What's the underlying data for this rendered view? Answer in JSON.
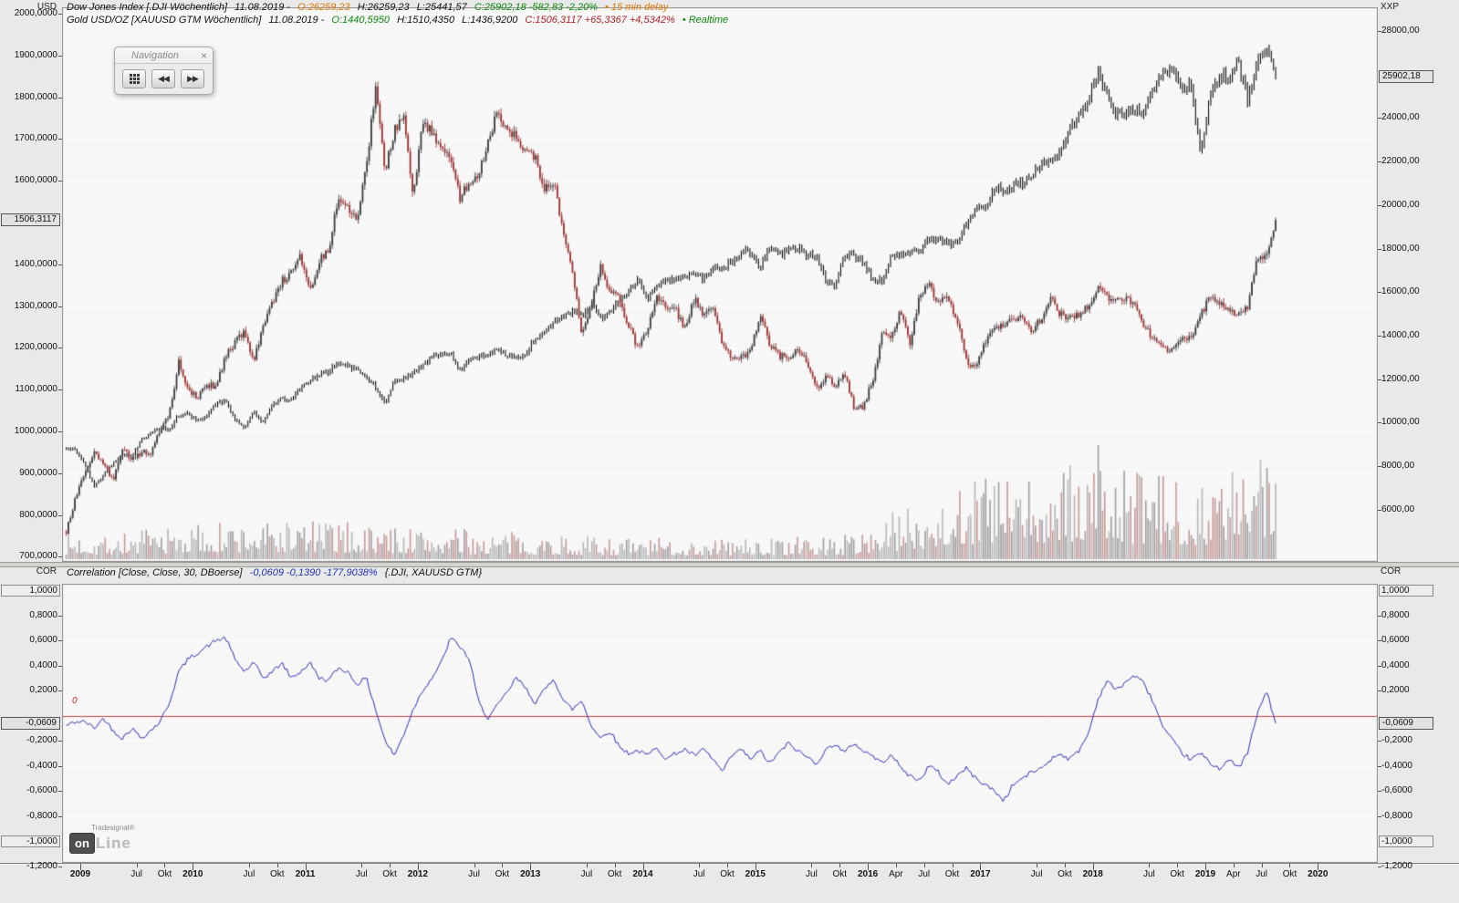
{
  "axes": {
    "left_title": "USD",
    "right_title": "XXP",
    "corr_title": "COR",
    "price_left": {
      "ticks": [
        {
          "v": 2000,
          "label": "2000,0000"
        },
        {
          "v": 1900,
          "label": "1900,0000"
        },
        {
          "v": 1800,
          "label": "1800,0000"
        },
        {
          "v": 1700,
          "label": "1700,0000"
        },
        {
          "v": 1600,
          "label": "1600,0000"
        },
        {
          "v": 1400,
          "label": "1400,0000"
        },
        {
          "v": 1300,
          "label": "1300,0000"
        },
        {
          "v": 1200,
          "label": "1200,0000"
        },
        {
          "v": 1100,
          "label": "1100,0000"
        },
        {
          "v": 1000,
          "label": "1000,0000"
        },
        {
          "v": 900,
          "label": "900,0000"
        },
        {
          "v": 800,
          "label": "800,0000"
        },
        {
          "v": 700,
          "label": "700,0000"
        }
      ],
      "marker": {
        "v": 1506.3117,
        "label": "1506,3117"
      }
    },
    "price_right": {
      "ticks": [
        {
          "v": 28000,
          "label": "28000,00"
        },
        {
          "v": 24000,
          "label": "24000,00"
        },
        {
          "v": 22000,
          "label": "22000,00"
        },
        {
          "v": 20000,
          "label": "20000,00"
        },
        {
          "v": 18000,
          "label": "18000,00"
        },
        {
          "v": 16000,
          "label": "16000,00"
        },
        {
          "v": 14000,
          "label": "14000,00"
        },
        {
          "v": 12000,
          "label": "12000,00"
        },
        {
          "v": 10000,
          "label": "10000,00"
        },
        {
          "v": 8000,
          "label": "8000,00"
        },
        {
          "v": 6000,
          "label": "6000,00"
        }
      ],
      "marker": {
        "v": 25902.18,
        "label": "25902,18"
      }
    },
    "corr": {
      "ticks": [
        {
          "v": 0.8,
          "label": "0,8000"
        },
        {
          "v": 0.6,
          "label": "0,6000"
        },
        {
          "v": 0.4,
          "label": "0,4000"
        },
        {
          "v": 0.2,
          "label": "0,2000"
        },
        {
          "v": -0.2,
          "label": "-0,2000"
        },
        {
          "v": -0.4,
          "label": "-0,4000"
        },
        {
          "v": -0.6,
          "label": "-0,6000"
        },
        {
          "v": -0.8,
          "label": "-0,8000"
        }
      ],
      "bounds": [
        {
          "v": 1,
          "label": "1,0000"
        },
        {
          "v": -1,
          "label": "-1,0000"
        }
      ],
      "edges": [
        {
          "v": -1.2,
          "label": "-1,2000"
        }
      ],
      "marker": {
        "v": -0.0609,
        "label": "-0,0609"
      },
      "zero_label": "0"
    },
    "time": [
      {
        "t": 2009,
        "label": "2009",
        "year": true
      },
      {
        "t": 2009.5,
        "label": "Jul"
      },
      {
        "t": 2009.75,
        "label": "Okt"
      },
      {
        "t": 2010,
        "label": "2010",
        "year": true
      },
      {
        "t": 2010.5,
        "label": "Jul"
      },
      {
        "t": 2010.75,
        "label": "Okt"
      },
      {
        "t": 2011,
        "label": "2011",
        "year": true
      },
      {
        "t": 2011.5,
        "label": "Jul"
      },
      {
        "t": 2011.75,
        "label": "Okt"
      },
      {
        "t": 2012,
        "label": "2012",
        "year": true
      },
      {
        "t": 2012.5,
        "label": "Jul"
      },
      {
        "t": 2012.75,
        "label": "Okt"
      },
      {
        "t": 2013,
        "label": "2013",
        "year": true
      },
      {
        "t": 2013.5,
        "label": "Jul"
      },
      {
        "t": 2013.75,
        "label": "Okt"
      },
      {
        "t": 2014,
        "label": "2014",
        "year": true
      },
      {
        "t": 2014.5,
        "label": "Jul"
      },
      {
        "t": 2014.75,
        "label": "Okt"
      },
      {
        "t": 2015,
        "label": "2015",
        "year": true
      },
      {
        "t": 2015.5,
        "label": "Jul"
      },
      {
        "t": 2015.75,
        "label": "Okt"
      },
      {
        "t": 2016,
        "label": "2016",
        "year": true
      },
      {
        "t": 2016.25,
        "label": "Apr"
      },
      {
        "t": 2016.5,
        "label": "Jul"
      },
      {
        "t": 2016.75,
        "label": "Okt"
      },
      {
        "t": 2017,
        "label": "2017",
        "year": true
      },
      {
        "t": 2017.5,
        "label": "Jul"
      },
      {
        "t": 2017.75,
        "label": "Okt"
      },
      {
        "t": 2018,
        "label": "2018",
        "year": true
      },
      {
        "t": 2018.5,
        "label": "Jul"
      },
      {
        "t": 2018.75,
        "label": "Okt"
      },
      {
        "t": 2019,
        "label": "2019",
        "year": true
      },
      {
        "t": 2019.25,
        "label": "Apr"
      },
      {
        "t": 2019.5,
        "label": "Jul"
      },
      {
        "t": 2019.75,
        "label": "Okt"
      },
      {
        "t": 2020,
        "label": "2020",
        "year": true
      }
    ]
  },
  "headers": {
    "dji": {
      "name": "Dow Jones Index [.DJI Wöchentlich]",
      "date": "11.08.2019 -",
      "open": "O:26259,23",
      "high": "H:26259,23",
      "low": "L:25441,57",
      "close": "C:25902,18 -582,83 -2,20%",
      "bullet": "•",
      "status": "15 min delay"
    },
    "gold": {
      "name": "Gold USD/OZ [XAUUSD GTM Wöchentlich]",
      "date": "11.08.2019 -",
      "open": "O:1440,5950",
      "high": "H:1510,4350",
      "low": "L:1436,9200",
      "close": "C:1506,3117 +65,3367 +4,5342%",
      "bullet": "•",
      "status": "Realtime"
    },
    "corr": {
      "name": "Correlation [Close, Close, 30, DBoerse]",
      "values": "-0,0609 -0,1390 -177,9038%",
      "instruments": "{.DJI, XAUUSD GTM}"
    }
  },
  "navigation": {
    "title": "Navigation",
    "close": "×",
    "back": "◀◀",
    "forward": "▶▶"
  },
  "logo": {
    "brand": "Tradesignal",
    "reg": "®",
    "on": "on",
    "line": "Line"
  },
  "chart_data": [
    {
      "type": "candlestick",
      "title": "Dow Jones Index [.DJI] vs Gold USD/OZ [XAUUSD GTM], Wöchentlich",
      "x_unit": "decimal_year",
      "x_range": [
        2008.84,
        2020.56
      ],
      "left_ylim": [
        700,
        2010
      ],
      "right_ylim": [
        5500,
        28600
      ],
      "series": [
        {
          "name": "Gold USD/OZ [XAUUSD GTM]",
          "style": "candlestick",
          "axis": "left",
          "up_color": "#3f3f3f",
          "down_color": "#9c3636",
          "monthly_close": {
            "start": 2008.875,
            "step": 0.0833333,
            "values": [
              760,
              840,
              900,
              950,
              920,
              880,
              960,
              930,
              950,
              950,
              1000,
              1040,
              1170,
              1100,
              1080,
              1110,
              1110,
              1180,
              1210,
              1240,
              1170,
              1250,
              1310,
              1360,
              1380,
              1420,
              1330,
              1410,
              1430,
              1560,
              1540,
              1500,
              1630,
              1830,
              1620,
              1720,
              1750,
              1560,
              1740,
              1720,
              1670,
              1660,
              1560,
              1600,
              1620,
              1690,
              1770,
              1720,
              1710,
              1670,
              1660,
              1580,
              1600,
              1470,
              1390,
              1230,
              1310,
              1400,
              1330,
              1320,
              1250,
              1200,
              1240,
              1330,
              1290,
              1290,
              1250,
              1320,
              1280,
              1290,
              1210,
              1170,
              1180,
              1190,
              1280,
              1210,
              1180,
              1180,
              1190,
              1170,
              1100,
              1130,
              1110,
              1140,
              1060,
              1060,
              1120,
              1230,
              1230,
              1290,
              1210,
              1320,
              1350,
              1310,
              1320,
              1270,
              1170,
              1150,
              1210,
              1250,
              1250,
              1270,
              1270,
              1240,
              1270,
              1320,
              1280,
              1270,
              1280,
              1300,
              1340,
              1320,
              1320,
              1320,
              1300,
              1250,
              1220,
              1200,
              1190,
              1220,
              1220,
              1280,
              1320,
              1310,
              1290,
              1280,
              1300,
              1410,
              1420,
              1506.31
            ]
          },
          "last_close": 1506.3117
        },
        {
          "name": "Dow Jones Index [.DJI]",
          "style": "hl-bars",
          "axis": "right",
          "color": "#101010",
          "monthly_close": {
            "start": 2008.875,
            "step": 0.0833333,
            "values": [
              8830,
              8780,
              8000,
              7060,
              7600,
              8170,
              8500,
              8450,
              9170,
              9500,
              9710,
              9710,
              10340,
              10430,
              10070,
              10320,
              10860,
              11010,
              10140,
              9770,
              10470,
              10010,
              10790,
              11120,
              11010,
              11580,
              11890,
              12230,
              12320,
              12810,
              12570,
              12410,
              12140,
              11610,
              10910,
              11960,
              12050,
              12220,
              12630,
              12950,
              13210,
              13210,
              12390,
              12880,
              13010,
              13090,
              13440,
              13100,
              13030,
              13100,
              13860,
              14050,
              14580,
              14840,
              15120,
              14910,
              15500,
              14810,
              15130,
              15550,
              16090,
              16580,
              15700,
              16320,
              16460,
              16580,
              16720,
              16830,
              16560,
              17100,
              17040,
              17390,
              17830,
              17820,
              17160,
              18130,
              17780,
              17840,
              18010,
              17620,
              17690,
              16530,
              16280,
              17660,
              17720,
              17420,
              16470,
              16520,
              17690,
              17770,
              17790,
              17930,
              18430,
              18400,
              18310,
              18140,
              19120,
              19760,
              19860,
              20810,
              20660,
              20940,
              21010,
              21350,
              21890,
              21950,
              22400,
              23380,
              24270,
              24720,
              26150,
              25030,
              24100,
              24160,
              24420,
              24270,
              25420,
              25960,
              26460,
              25120,
              25540,
              22300,
              25000,
              25920,
              25930,
              26590,
              24820,
              26600,
              27200,
              25902.18
            ]
          },
          "last_close": 25902.18
        },
        {
          "name": "Volume",
          "style": "histogram",
          "unit": "relative_height_px",
          "profile": [
            [
              2008.9,
              16
            ],
            [
              2009.5,
              18
            ],
            [
              2010,
              22
            ],
            [
              2011,
              25
            ],
            [
              2012,
              20
            ],
            [
              2013,
              16
            ],
            [
              2014,
              13
            ],
            [
              2015,
              13
            ],
            [
              2015.8,
              15
            ],
            [
              2016.2,
              28
            ],
            [
              2016.7,
              45
            ],
            [
              2017,
              55
            ],
            [
              2017.5,
              50
            ],
            [
              2018,
              62
            ],
            [
              2018.5,
              52
            ],
            [
              2019,
              52
            ],
            [
              2019.4,
              58
            ],
            [
              2019.62,
              72
            ]
          ],
          "spikes": [
            [
              2016.95,
              85
            ],
            [
              2018.05,
              125
            ],
            [
              2019.55,
              100
            ]
          ]
        }
      ]
    },
    {
      "type": "line",
      "title": "Correlation [Close, Close, 30, DBoerse] {.DJI, XAUUSD GTM}",
      "ylim": [
        -1.2,
        1.05
      ],
      "zero_line": 0,
      "last_value": -0.0609,
      "series": [
        {
          "name": "Correlation",
          "color": "#2d2db8",
          "monthly": {
            "start": 2008.875,
            "step": 0.0833333,
            "values": [
              -0.08,
              -0.05,
              -0.05,
              -0.1,
              -0.02,
              -0.12,
              -0.18,
              -0.1,
              -0.18,
              -0.12,
              -0.05,
              0.1,
              0.35,
              0.45,
              0.5,
              0.55,
              0.6,
              0.62,
              0.45,
              0.35,
              0.42,
              0.3,
              0.35,
              0.42,
              0.3,
              0.35,
              0.42,
              0.3,
              0.28,
              0.38,
              0.35,
              0.25,
              0.3,
              0.05,
              -0.2,
              -0.32,
              -0.15,
              0.05,
              0.2,
              0.3,
              0.42,
              0.62,
              0.55,
              0.45,
              0.1,
              -0.02,
              0.08,
              0.18,
              0.3,
              0.22,
              0.1,
              0.2,
              0.3,
              0.12,
              0.05,
              0.12,
              -0.08,
              -0.18,
              -0.12,
              -0.25,
              -0.3,
              -0.28,
              -0.32,
              -0.25,
              -0.35,
              -0.3,
              -0.27,
              -0.32,
              -0.27,
              -0.35,
              -0.45,
              -0.32,
              -0.27,
              -0.35,
              -0.28,
              -0.38,
              -0.3,
              -0.22,
              -0.28,
              -0.33,
              -0.38,
              -0.28,
              -0.22,
              -0.3,
              -0.22,
              -0.28,
              -0.32,
              -0.38,
              -0.3,
              -0.42,
              -0.48,
              -0.52,
              -0.4,
              -0.45,
              -0.55,
              -0.48,
              -0.42,
              -0.5,
              -0.55,
              -0.6,
              -0.68,
              -0.55,
              -0.5,
              -0.45,
              -0.42,
              -0.35,
              -0.3,
              -0.35,
              -0.28,
              -0.15,
              0.12,
              0.28,
              0.2,
              0.27,
              0.32,
              0.25,
              0.1,
              -0.1,
              -0.2,
              -0.3,
              -0.35,
              -0.3,
              -0.38,
              -0.42,
              -0.35,
              -0.42,
              -0.3,
              0.0,
              0.2,
              -0.0609
            ]
          }
        }
      ]
    }
  ]
}
